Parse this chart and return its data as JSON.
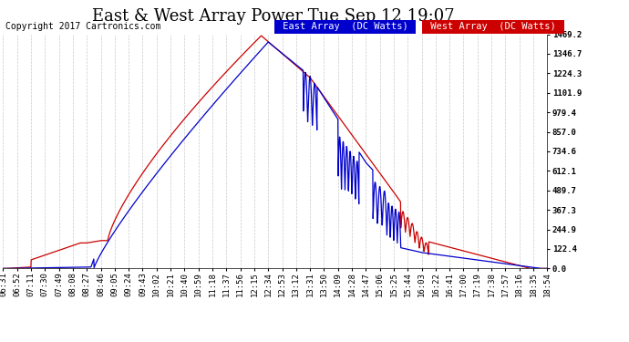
{
  "title": "East & West Array Power Tue Sep 12 19:07",
  "copyright": "Copyright 2017 Cartronics.com",
  "legend_east": "East Array  (DC Watts)",
  "legend_west": "West Array  (DC Watts)",
  "east_color": "#0000cc",
  "west_color": "#cc0000",
  "background_color": "#ffffff",
  "plot_bg_color": "#ffffff",
  "grid_color": "#bbbbbb",
  "ylim": [
    0.0,
    1469.2
  ],
  "yticks": [
    0.0,
    122.4,
    244.9,
    367.3,
    489.7,
    612.1,
    734.6,
    857.0,
    979.4,
    1101.9,
    1224.3,
    1346.7,
    1469.2
  ],
  "title_fontsize": 13,
  "tick_fontsize": 6.5,
  "legend_fontsize": 7.5,
  "copyright_fontsize": 7,
  "xtick_labels": [
    "06:31",
    "06:52",
    "07:11",
    "07:30",
    "07:49",
    "08:08",
    "08:27",
    "08:46",
    "09:05",
    "09:24",
    "09:43",
    "10:02",
    "10:21",
    "10:40",
    "10:59",
    "11:18",
    "11:37",
    "11:56",
    "12:15",
    "12:34",
    "12:53",
    "13:12",
    "13:31",
    "13:50",
    "14:09",
    "14:28",
    "14:47",
    "15:06",
    "15:25",
    "15:44",
    "16:03",
    "16:22",
    "16:41",
    "17:00",
    "17:19",
    "17:38",
    "17:57",
    "18:16",
    "18:35",
    "18:54"
  ]
}
